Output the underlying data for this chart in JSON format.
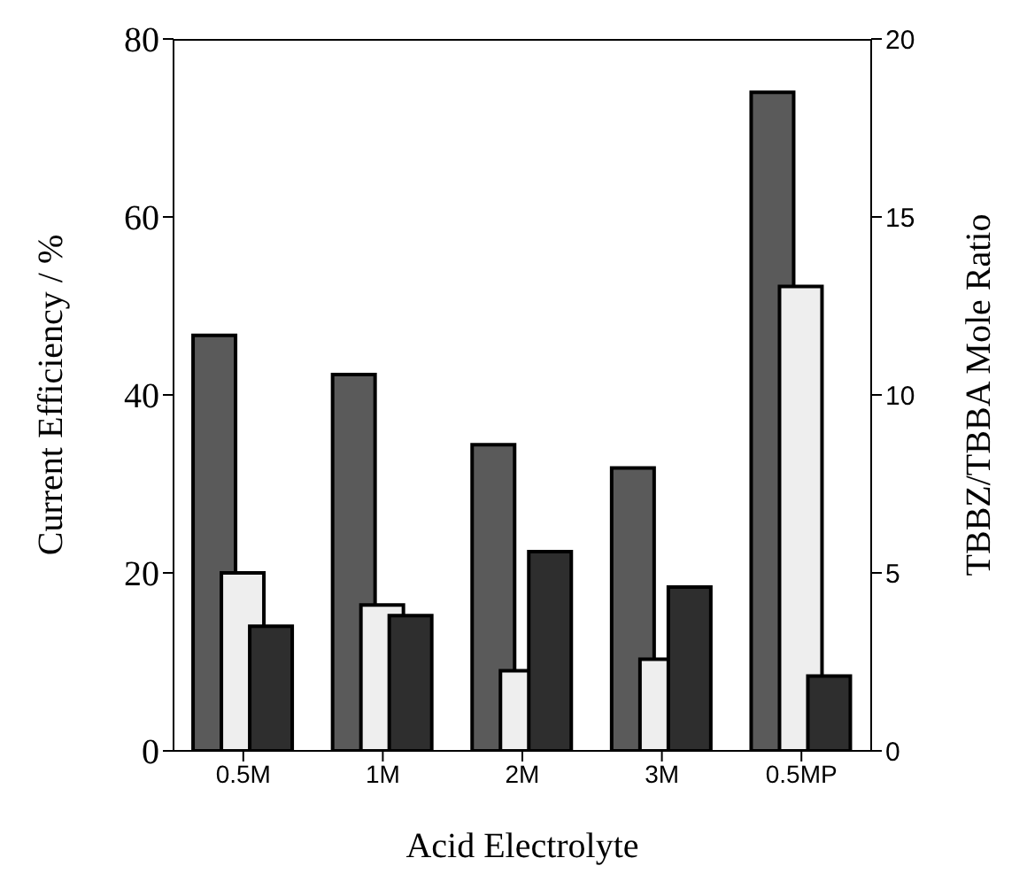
{
  "chart_data": {
    "type": "bar",
    "xlabel": "Acid Electrolyte",
    "ylabel": "Current Efficiency / %",
    "y2label": "TBBZ/TBBA Mole Ratio",
    "categories": [
      "0.5M",
      "1M",
      "2M",
      "3M",
      "0.5MP"
    ],
    "series": [
      {
        "color": "#5a5a5a",
        "values": [
          46.7,
          42.3,
          34.4,
          31.8,
          74
        ]
      },
      {
        "color": "#eeeeee",
        "values": [
          20,
          16.4,
          9,
          10.3,
          52.2
        ]
      },
      {
        "color": "#2e2e2e",
        "axis": "y2",
        "values": [
          3.5,
          3.8,
          5.6,
          4.6,
          2.1
        ]
      }
    ],
    "ylim": [
      0,
      80
    ],
    "yticks": [
      0,
      20,
      40,
      60,
      80
    ],
    "y2lim": [
      0,
      20
    ],
    "y2ticks": [
      0,
      5,
      10,
      15,
      20
    ],
    "grid": false,
    "legend": false
  }
}
